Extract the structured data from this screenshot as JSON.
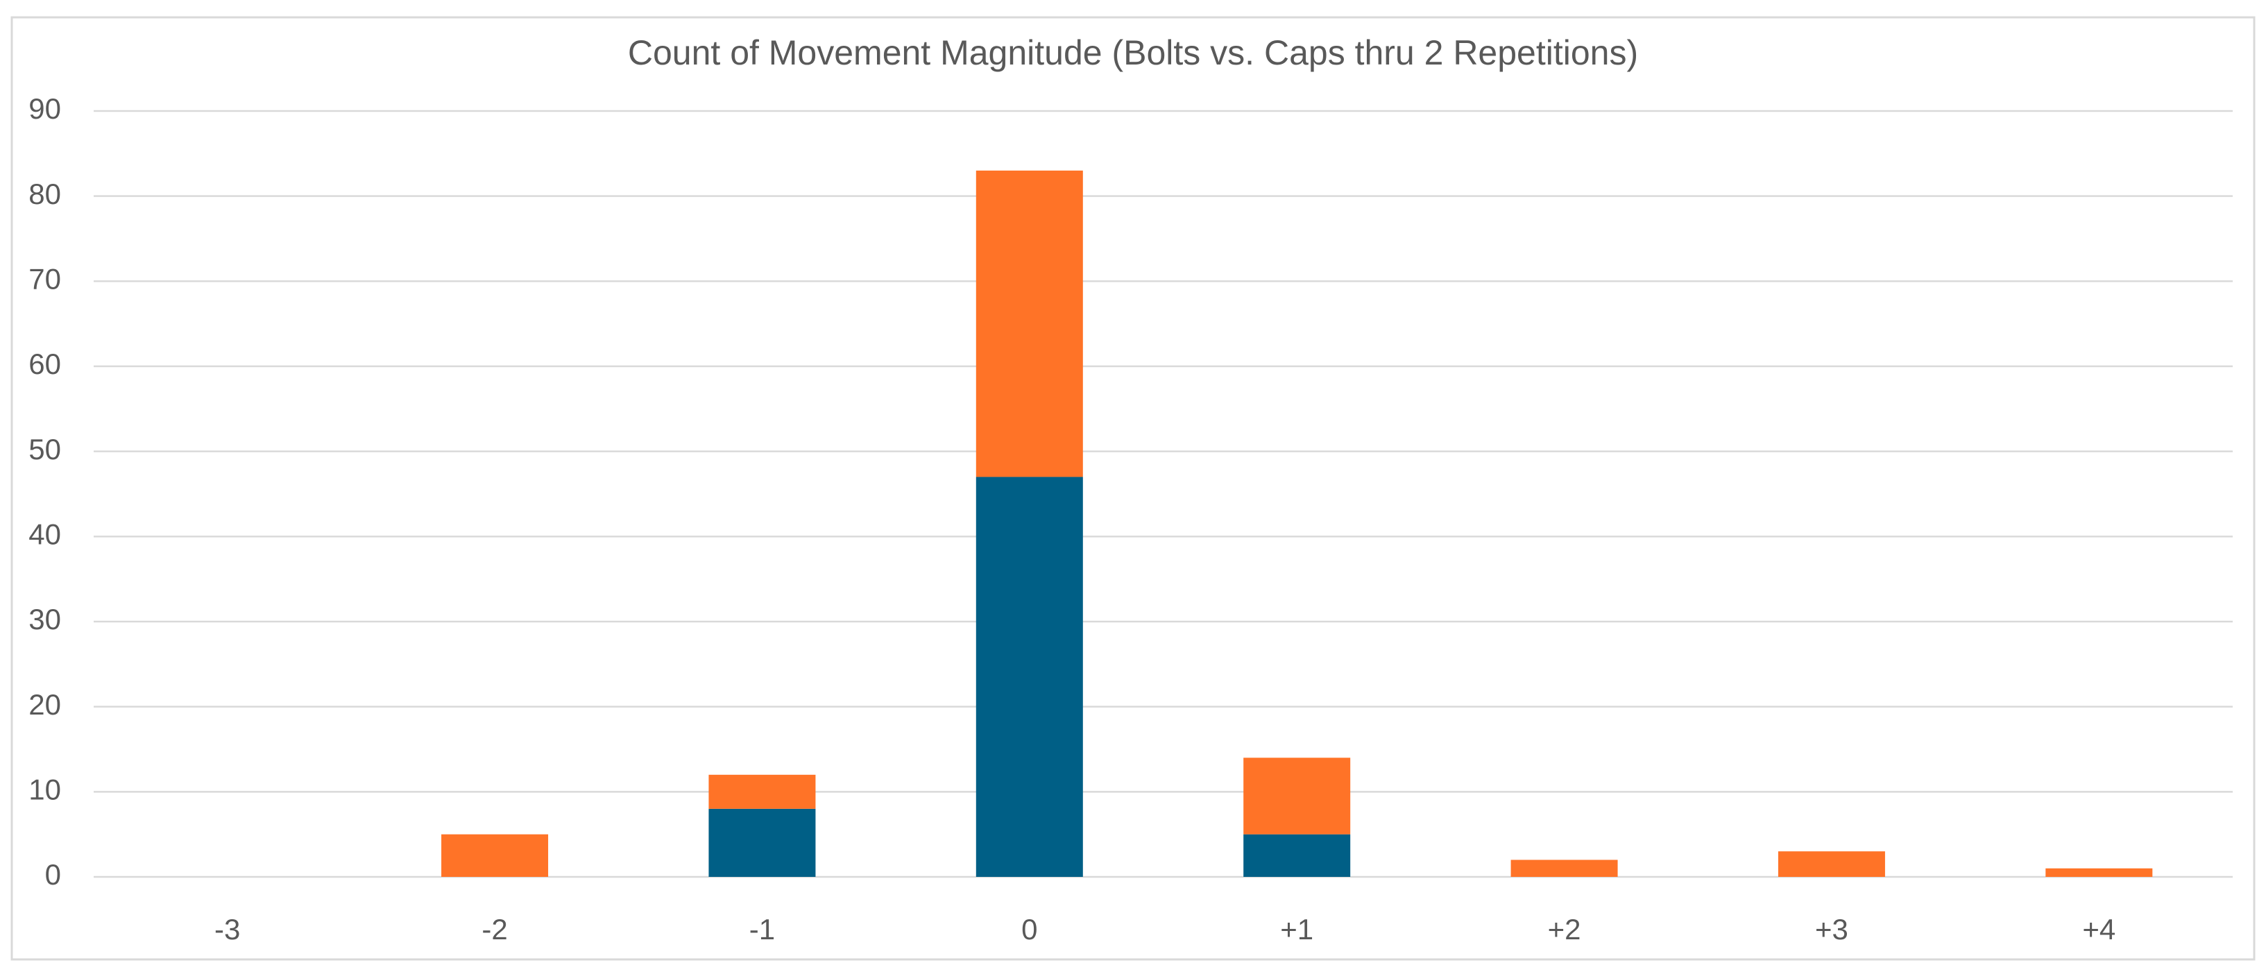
{
  "chart_data": {
    "type": "stacked_bar",
    "title": "Count of Movement Magnitude (Bolts vs. Caps thru 2 Repetitions)",
    "categories": [
      "-3",
      "-2",
      "-1",
      "0",
      "+1",
      "+2",
      "+3",
      "+4"
    ],
    "series": [
      {
        "color": "#005f86",
        "values": [
          0,
          0,
          8,
          47,
          5,
          0,
          0,
          0
        ]
      },
      {
        "color": "#ff7327",
        "values": [
          0,
          5,
          4,
          36,
          9,
          2,
          3,
          1
        ]
      }
    ],
    "ylim": [
      0,
      90
    ],
    "yticks": [
      0,
      10,
      20,
      30,
      40,
      50,
      60,
      70,
      80,
      90
    ],
    "grid": true
  }
}
